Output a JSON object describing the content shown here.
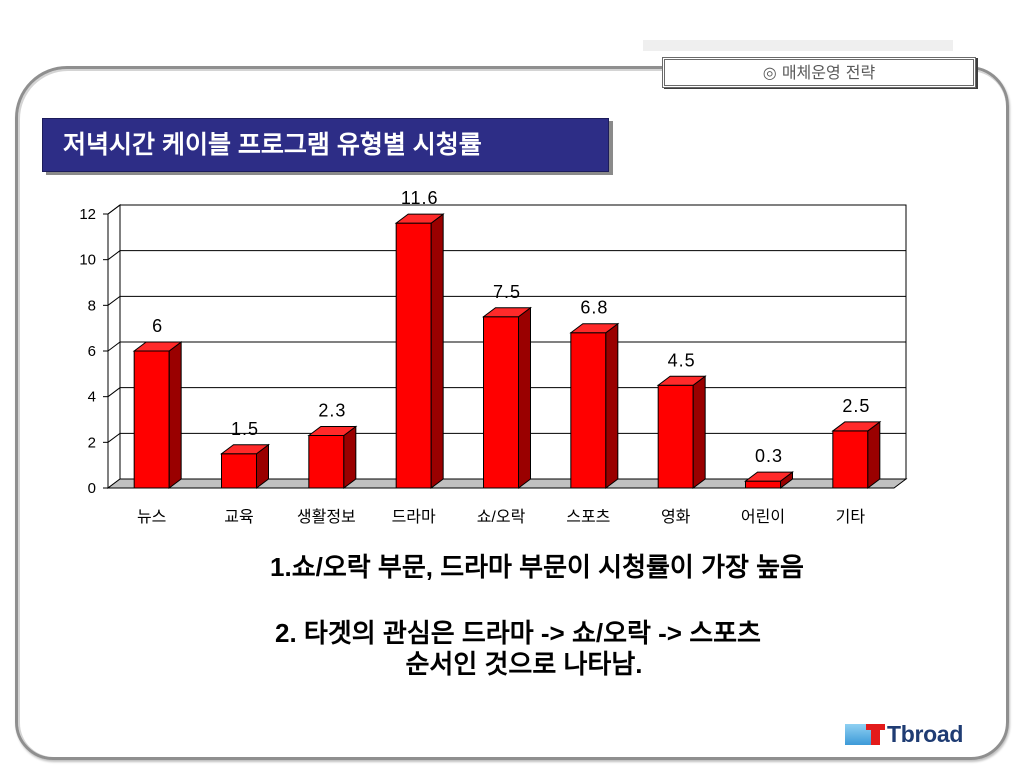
{
  "slide": {
    "header_tab": "◎ 매체운영 전략",
    "notes": [
      "1.쇼/오락 부문, 드라마 부문이 시청률이 가장 높음",
      "2. 타겟의 관심은 드라마 -> 쇼/오락 -> 스포츠",
      "순서인 것으로 나타남."
    ]
  },
  "logo": {
    "icon": "tbroad-logo-icon",
    "text": "Tbroad"
  },
  "colors": {
    "title_bg": "#2d2d86",
    "plot_bg": "#ffffff",
    "floor": "#c0c0c0",
    "bar_front": "#ff0000",
    "bar_side": "#9a0000",
    "bar_top": "#ff2a2a",
    "logo_blue": "#3d9ad8",
    "logo_red": "#e31b1b",
    "logo_text": "#1f3c73"
  },
  "chart_data": {
    "type": "bar",
    "three_d": true,
    "title": "저녁시간 케이블 프로그램 유형별 시청률",
    "categories": [
      "뉴스",
      "교육",
      "생활정보",
      "드라마",
      "쇼/오락",
      "스포츠",
      "영화",
      "어린이",
      "기타"
    ],
    "values": [
      6,
      1.5,
      2.3,
      11.6,
      7.5,
      6.8,
      4.5,
      0.3,
      2.5
    ],
    "ylim": [
      0,
      12
    ],
    "yticks": [
      0,
      2,
      4,
      6,
      8,
      10,
      12
    ],
    "grid": true
  }
}
